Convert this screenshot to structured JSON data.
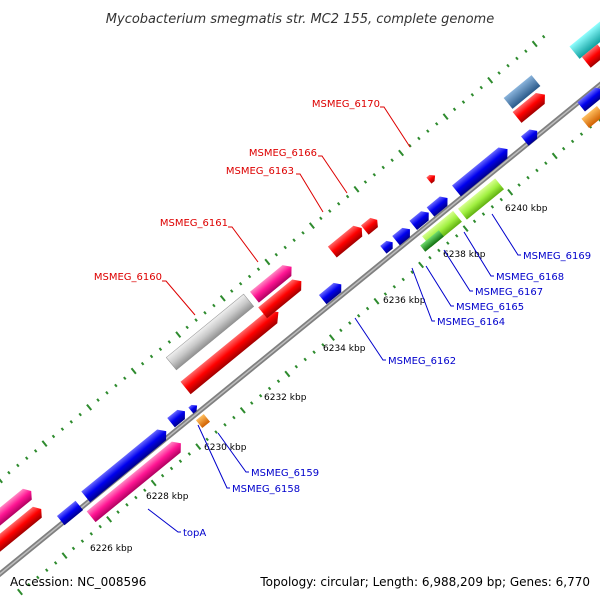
{
  "title": "Mycobacterium smegmatis str. MC2 155, complete genome",
  "accession": "Accession: NC_008596",
  "topology": "Topology: circular; Length: 6,988,209 bp; Genes: 6,770",
  "ticks": [
    "6226 kbp",
    "6228 kbp",
    "6230 kbp",
    "6232 kbp",
    "6234 kbp",
    "6236 kbp",
    "6238 kbp",
    "6240 kbp"
  ],
  "labels_top": [
    "MSMEG_6160",
    "MSMEG_6161",
    "MSMEG_6163",
    "MSMEG_6166",
    "MSMEG_6170"
  ],
  "labels_bottom": [
    "topA",
    "MSMEG_6158",
    "MSMEG_6159",
    "MSMEG_6162",
    "MSMEG_6164",
    "MSMEG_6165",
    "MSMEG_6167",
    "MSMEG_6168",
    "MSMEG_6169"
  ],
  "colors": {
    "backbone": "#808080",
    "tick_dots": "#2e8b2e",
    "label_top": "#dd0000",
    "label_bottom": "#0000cc",
    "gene_red": "#ff0000",
    "gene_blue": "#0000ee",
    "gene_pink": "#ff1493",
    "gene_gray": "#c8c8c8",
    "gene_orange": "#ff8c00",
    "gene_lime": "#a0f040",
    "gene_green": "#22aa22",
    "gene_steel": "#4682b4",
    "gene_cyan": "#20d0d0"
  }
}
